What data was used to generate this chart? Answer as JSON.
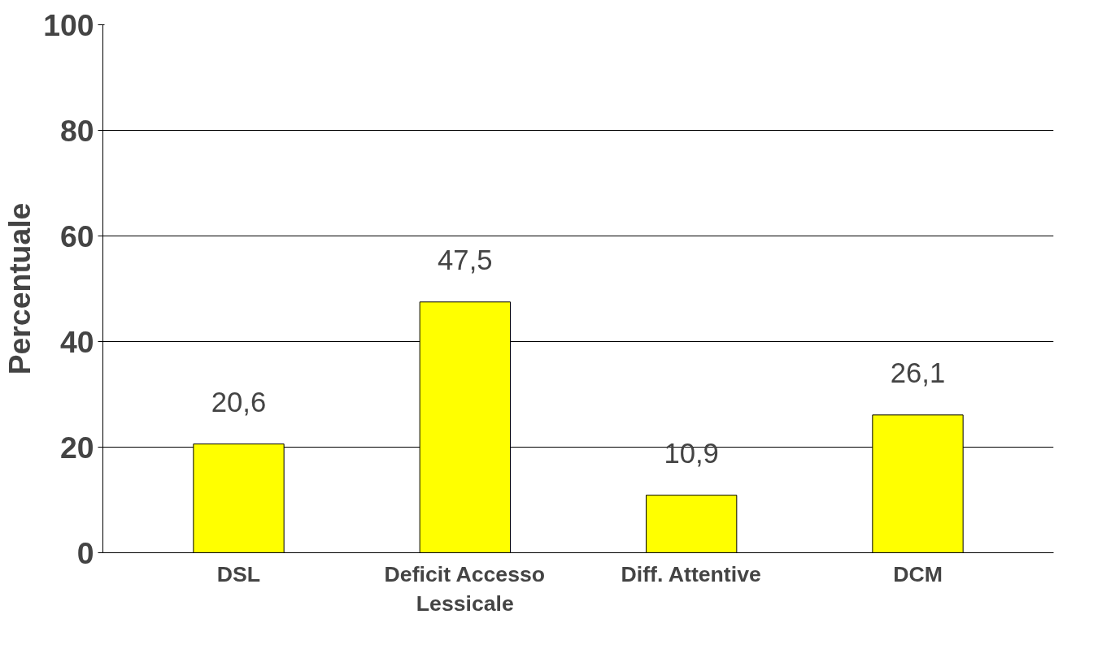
{
  "chart_data": {
    "type": "bar",
    "ylabel": "Percentuale",
    "categories": [
      "DSL",
      "Deficit Accesso\nLessicale",
      "Diff. Attentive",
      "DCM"
    ],
    "values": [
      20.6,
      47.5,
      10.9,
      26.1
    ],
    "value_labels": [
      "20,6",
      "47,5",
      "10,9",
      "26,1"
    ],
    "color": "#ffff00",
    "ylim": [
      0,
      100
    ],
    "yticks": [
      0,
      20,
      40,
      60,
      80,
      100
    ],
    "grid": "y"
  }
}
